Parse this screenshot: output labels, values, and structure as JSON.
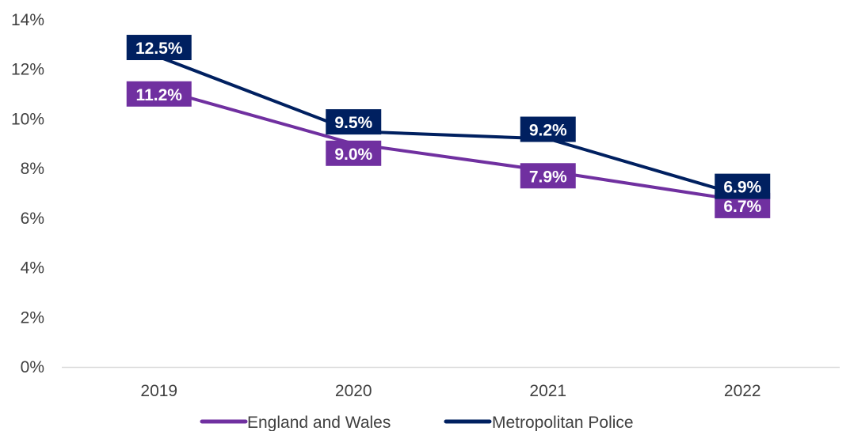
{
  "chart_data": {
    "type": "line",
    "title": "",
    "xlabel": "",
    "ylabel": "",
    "categories": [
      "2019",
      "2020",
      "2021",
      "2022"
    ],
    "ylim": [
      0,
      14
    ],
    "y_ticks": [
      0,
      2,
      4,
      6,
      8,
      10,
      12,
      14
    ],
    "y_tick_suffix": "%",
    "grid": false,
    "legend_position": "bottom",
    "series": [
      {
        "name": "England and Wales",
        "color": "#7030A0",
        "values": [
          11.2,
          9.0,
          7.9,
          6.7
        ],
        "labels": [
          "11.2%",
          "9.0%",
          "7.9%",
          "6.7%"
        ]
      },
      {
        "name": "Metropolitan Police",
        "color": "#002060",
        "values": [
          12.5,
          9.5,
          9.2,
          6.9
        ],
        "labels": [
          "12.5%",
          "9.5%",
          "9.2%",
          "6.9%"
        ]
      }
    ]
  }
}
